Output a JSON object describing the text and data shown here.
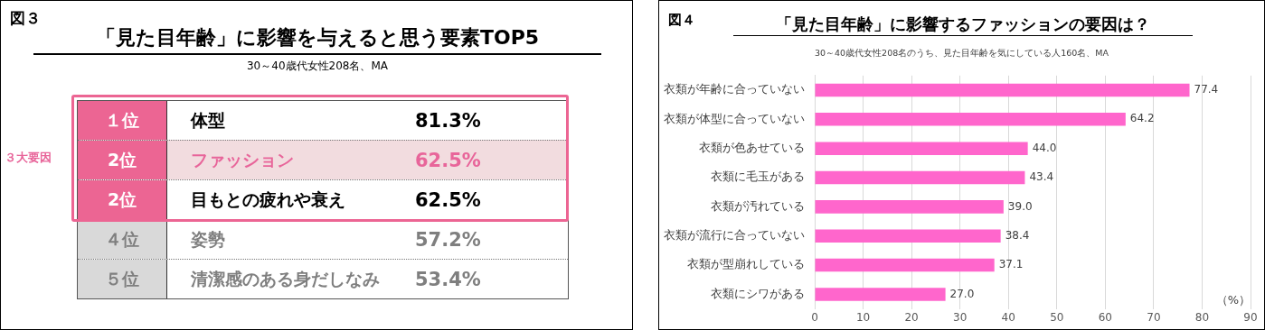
{
  "chart_data": [
    {
      "type": "other",
      "title": "「見た目年齢」に影響を与えると思う要素TOP5",
      "subtitle": "30～40歳代女性208名、MA",
      "categories": [
        "体型",
        "ファッション",
        "目もとの疲れや衰え",
        "姿勢",
        "清潔感のある身だしなみ"
      ],
      "value_labels": [
        "81.3%",
        "62.5%",
        "62.5%",
        "57.2%",
        "53.4%"
      ],
      "annotations": [
        "図３",
        "３大要因",
        "１位",
        "2位",
        "2位",
        "４位",
        "５位"
      ]
    },
    {
      "type": "bar",
      "orientation": "horizontal",
      "title": "「見た目年齢」に影響するファッションの要因は？",
      "subtitle": "30～40歳代女性208名のうち、見た目年齢を気にしている人160名、MA",
      "xlabel": "（%）",
      "categories": [
        "衣類が年齢に合っていない",
        "衣類が体型に合っていない",
        "衣類が色あせている",
        "衣類に毛玉がある",
        "衣類が汚れている",
        "衣類が流行に合っていない",
        "衣類が型崩れしている",
        "衣類にシワがある"
      ],
      "values": [
        77.4,
        64.2,
        44.0,
        43.4,
        39.0,
        38.4,
        37.1,
        27.0
      ],
      "color": "#ff66cc",
      "xlim": [
        0,
        90
      ],
      "xticks": [
        0,
        10,
        20,
        30,
        40,
        50,
        60,
        70,
        80,
        90
      ],
      "value_labels": [
        "77.4",
        "64.2",
        "44.0",
        "43.4",
        "39.0",
        "38.4",
        "37.1",
        "27.0"
      ],
      "grid": "x",
      "legend": false,
      "annotations": [
        "図４"
      ]
    }
  ]
}
